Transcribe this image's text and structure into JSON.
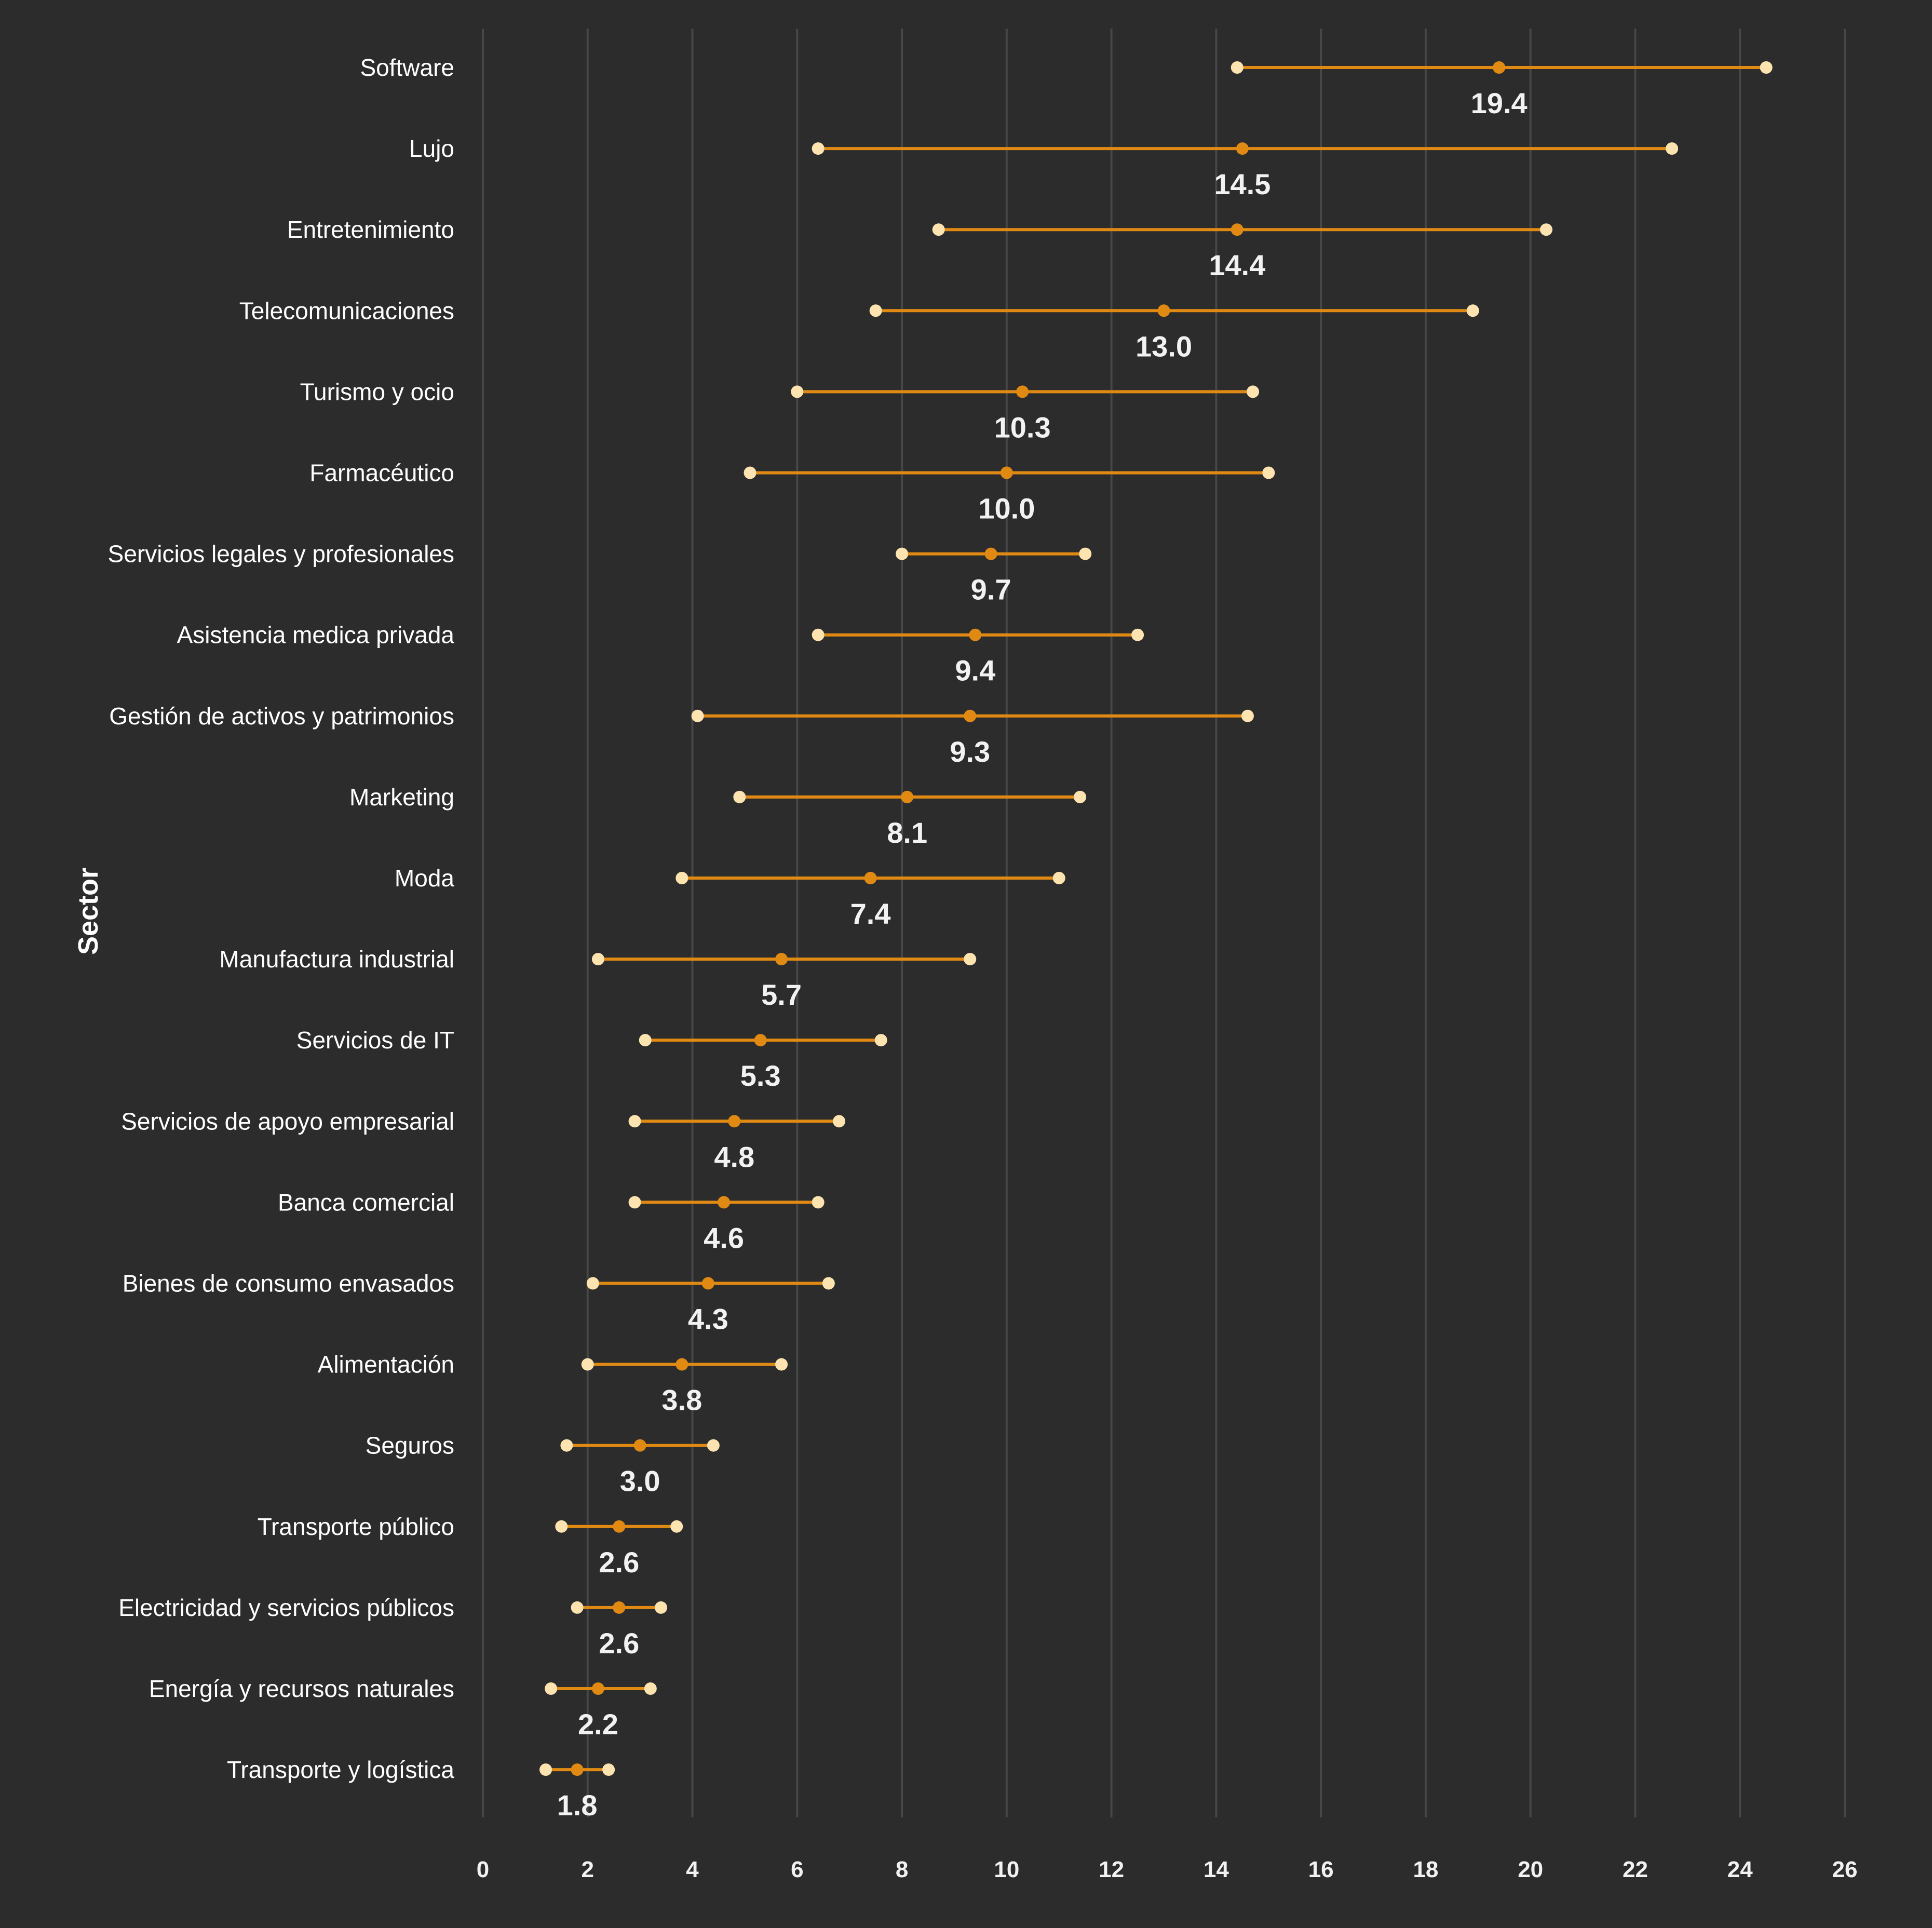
{
  "chart_data": {
    "type": "dumbbell",
    "title": "",
    "xlabel": "",
    "ylabel": "Sector",
    "xlim": [
      0,
      26
    ],
    "xticks": [
      0,
      2,
      4,
      6,
      8,
      10,
      12,
      14,
      16,
      18,
      20,
      22,
      24,
      26
    ],
    "grid": "vertical",
    "legend": "none",
    "colors": {
      "background": "#2c2c2c",
      "line": "#e08a14",
      "mid_marker": "#e08a14",
      "end_marker": "#fde3b0",
      "grid": "#474747",
      "text": "#ffffff"
    },
    "categories": [
      "Software",
      "Lujo",
      "Entretenimiento",
      "Telecomunicaciones",
      "Turismo y ocio",
      "Farmacéutico",
      "Servicios legales y profesionales",
      "Asistencia medica privada",
      "Gestión de activos y patrimonios",
      "Marketing",
      "Moda",
      "Manufactura industrial",
      "Servicios de IT",
      "Servicios de apoyo empresarial",
      "Banca comercial",
      "Bienes de consumo envasados",
      "Alimentación",
      "Seguros",
      "Transporte público",
      "Electricidad y servicios públicos",
      "Energía y recursos naturales",
      "Transporte y logística"
    ],
    "series": [
      {
        "name": "min",
        "values": [
          14.4,
          6.4,
          8.7,
          7.5,
          6.0,
          5.1,
          8.0,
          6.4,
          4.1,
          4.9,
          3.8,
          2.2,
          3.1,
          2.9,
          2.9,
          2.1,
          2.0,
          1.6,
          1.5,
          1.8,
          1.3,
          1.2
        ]
      },
      {
        "name": "median",
        "values": [
          19.4,
          14.5,
          14.4,
          13.0,
          10.3,
          10.0,
          9.7,
          9.4,
          9.3,
          8.1,
          7.4,
          5.7,
          5.3,
          4.8,
          4.6,
          4.3,
          3.8,
          3.0,
          2.6,
          2.6,
          2.2,
          1.8
        ]
      },
      {
        "name": "max",
        "values": [
          24.5,
          22.7,
          20.3,
          18.9,
          14.7,
          15.0,
          11.5,
          12.5,
          14.6,
          11.4,
          11.0,
          9.3,
          7.6,
          6.8,
          6.4,
          6.6,
          5.7,
          4.4,
          3.7,
          3.4,
          3.2,
          2.4
        ]
      }
    ],
    "value_labels": [
      "19.4",
      "14.5",
      "14.4",
      "13.0",
      "10.3",
      "10.0",
      "9.7",
      "9.4",
      "9.3",
      "8.1",
      "7.4",
      "5.7",
      "5.3",
      "4.8",
      "4.6",
      "4.3",
      "3.8",
      "3.0",
      "2.6",
      "2.6",
      "2.2",
      "1.8"
    ]
  }
}
